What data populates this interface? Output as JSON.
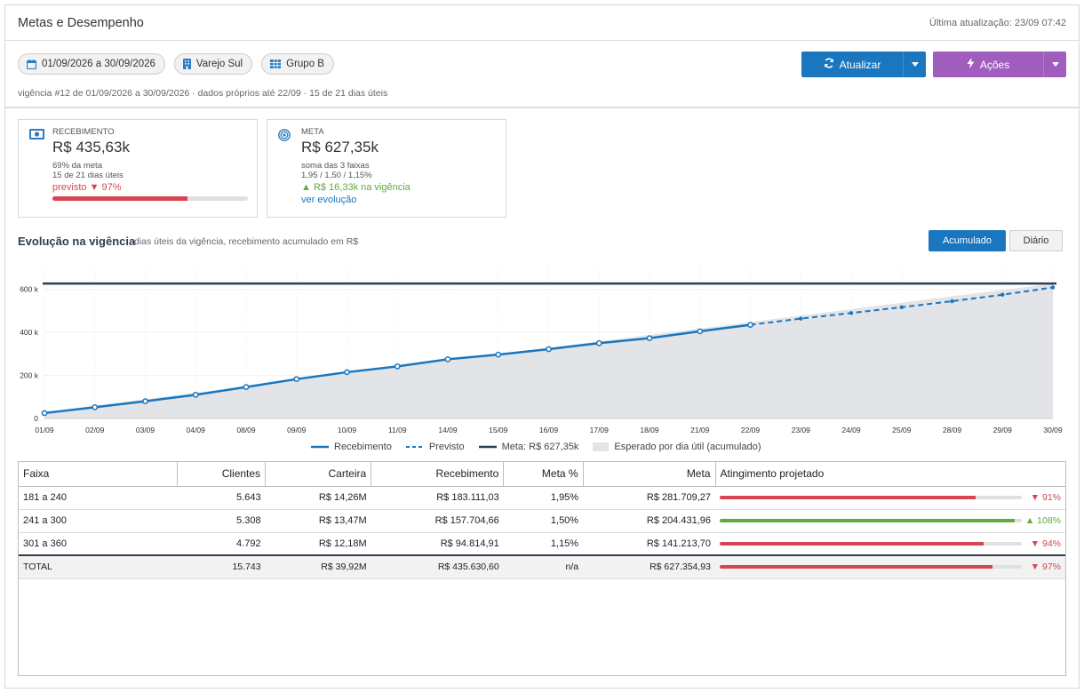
{
  "header": {
    "title": "Metas e Desempenho",
    "updated": "Última atualização: 23/09 07:42"
  },
  "filters": {
    "period": "01/09/2026 a 30/09/2026",
    "store": "Varejo Sul",
    "group": "Grupo B",
    "subline": "vigência #12 de 01/09/2026 a 30/09/2026 · dados próprios até 22/09 · 15 de 21 dias úteis"
  },
  "buttons": {
    "refresh": "Atualizar",
    "actions": "Ações"
  },
  "cards": {
    "receipt": {
      "label": "RECEBIMENTO",
      "value": "R$ 435,63k",
      "line1": "69% da meta",
      "line2": "15 de 21 dias úteis",
      "forecast": "previsto ▼ 97%",
      "progress": 0.69,
      "icon": "money-icon"
    },
    "goal": {
      "label": "META",
      "value": "R$ 627,35k",
      "line1": "soma das 3 faixas",
      "line2": "1,95 / 1,50 / 1,15%",
      "gain": "▲ R$ 16,33k na vigência",
      "link": "ver evolução",
      "icon": "target-icon"
    }
  },
  "chart_section": {
    "title": "Evolução na vigência",
    "subtitle": "dias úteis da vigência, recebimento acumulado em R$",
    "toggle_accumulated": "Acumulado",
    "toggle_daily": "Diário"
  },
  "chart_data": {
    "type": "line",
    "x": [
      "01/09",
      "02/09",
      "03/09",
      "04/09",
      "08/09",
      "09/09",
      "10/09",
      "11/09",
      "14/09",
      "15/09",
      "16/09",
      "17/09",
      "18/09",
      "21/09",
      "22/09",
      "23/09",
      "24/09",
      "25/09",
      "28/09",
      "29/09",
      "30/09"
    ],
    "series": [
      {
        "name": "Recebimento",
        "values": [
          25,
          52,
          80,
          110,
          146,
          183,
          215,
          242,
          275,
          297,
          322,
          350,
          373,
          405,
          435,
          null,
          null,
          null,
          null,
          null,
          null
        ]
      },
      {
        "name": "Previsto",
        "values": [
          null,
          null,
          null,
          null,
          null,
          null,
          null,
          null,
          null,
          null,
          null,
          null,
          null,
          null,
          435,
          464,
          490,
          517,
          545,
          575,
          609
        ]
      },
      {
        "name": "Meta: R$ 627,35k",
        "values": [
          627,
          627,
          627,
          627,
          627,
          627,
          627,
          627,
          627,
          627,
          627,
          627,
          627,
          627,
          627,
          627,
          627,
          627,
          627,
          627,
          627
        ]
      },
      {
        "name": "Esperado por dia útil (acumulado)",
        "values": [
          30,
          60,
          90,
          119,
          149,
          179,
          209,
          239,
          269,
          299,
          329,
          358,
          388,
          418,
          448,
          478,
          508,
          538,
          568,
          597,
          627
        ]
      }
    ],
    "yticks": [
      "0",
      "200 k",
      "400 k",
      "600 k"
    ],
    "ylim": [
      0,
      640
    ],
    "unit": "k R$",
    "colors": {
      "received": "#1a76be",
      "forecast": "#1a76be",
      "goal": "#2d3e50",
      "expected": "#e3e4e8"
    }
  },
  "table": {
    "headers": [
      "Faixa",
      "Clientes",
      "Carteira",
      "Recebimento",
      "Meta %",
      "Meta",
      "Atingimento projetado"
    ],
    "rows": [
      {
        "cells": [
          "181 a 240",
          "5.643",
          "R$ 14,26M",
          "R$ 183.111,03",
          "1,95%",
          "R$ 281.709,27"
        ],
        "att": "▼ 91%",
        "att_value": 0.91,
        "trend": "down"
      },
      {
        "cells": [
          "241 a 300",
          "5.308",
          "R$ 13,47M",
          "R$ 157.704,66",
          "1,50%",
          "R$ 204.431,96"
        ],
        "att": "▲ 108%",
        "att_value": 1.08,
        "trend": "up"
      },
      {
        "cells": [
          "301 a 360",
          "4.792",
          "R$ 12,18M",
          "R$ 94.814,91",
          "1,15%",
          "R$ 141.213,70"
        ],
        "att": "▼ 94%",
        "att_value": 0.94,
        "trend": "down"
      }
    ],
    "total": {
      "cells": [
        "TOTAL",
        "15.743",
        "R$ 39,92M",
        "R$ 435.630,60",
        "n/a",
        "R$ 627.354,93"
      ],
      "att": "▼ 97%",
      "att_value": 0.97,
      "trend": "down"
    }
  }
}
